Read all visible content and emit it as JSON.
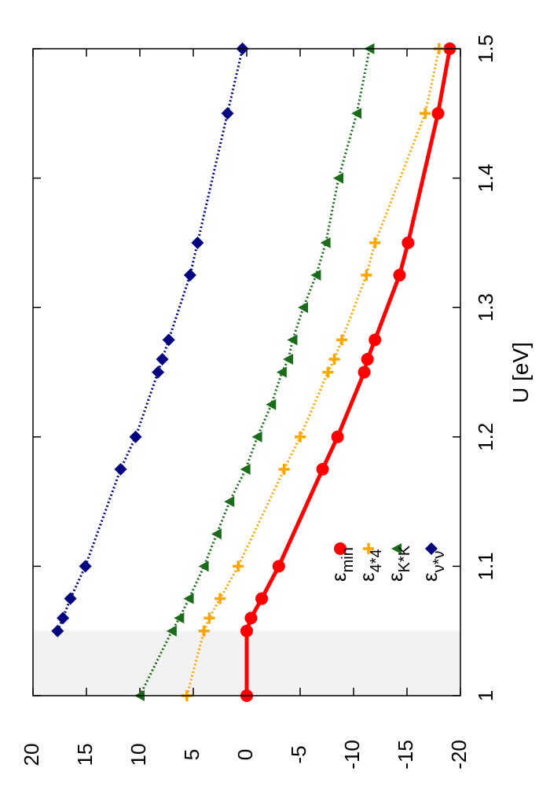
{
  "chart_data": {
    "type": "line",
    "xlabel": "U [eV]",
    "xlim": [
      1,
      1.5
    ],
    "xticks": [
      1,
      1.1,
      1.2,
      1.3,
      1.4,
      1.5
    ],
    "ylim": [
      -20,
      20
    ],
    "yticks": [
      -20,
      -15,
      -10,
      -5,
      0,
      5,
      10,
      15,
      20
    ],
    "shaded_x": [
      1,
      1.05
    ],
    "shade_color": "#f2f2f2",
    "series": [
      {
        "name": "εmin",
        "color": "#ff0000",
        "marker": "circle",
        "line": "solid",
        "x": [
          1,
          1.05,
          1.06,
          1.075,
          1.1,
          1.175,
          1.2,
          1.25,
          1.26,
          1.275,
          1.325,
          1.35,
          1.45,
          1.5
        ],
        "values": [
          0,
          0,
          -0.4,
          -1.4,
          -3,
          -7.1,
          -8.5,
          -11,
          -11.3,
          -12,
          -14.3,
          -15.1,
          -17.9,
          -19
        ]
      },
      {
        "name": "ε4*4",
        "color": "#ffa500",
        "marker": "plus",
        "line": "dotted",
        "x": [
          1,
          1.05,
          1.06,
          1.075,
          1.1,
          1.175,
          1.2,
          1.25,
          1.26,
          1.275,
          1.325,
          1.35,
          1.45,
          1.5
        ],
        "values": [
          5.6,
          4,
          3.5,
          2.5,
          0.8,
          -3.5,
          -5,
          -7.6,
          -8.2,
          -8.9,
          -11.2,
          -12,
          -16.7,
          -18
        ]
      },
      {
        "name": "εK*K",
        "color": "#1a6b1a",
        "marker": "triangle",
        "line": "dotted",
        "x": [
          1,
          1.05,
          1.06,
          1.075,
          1.1,
          1.125,
          1.15,
          1.175,
          1.2,
          1.225,
          1.25,
          1.26,
          1.275,
          1.3,
          1.325,
          1.35,
          1.4,
          1.45,
          1.5
        ],
        "values": [
          10,
          7,
          6.3,
          5.4,
          4,
          2.8,
          1.6,
          0.1,
          -1,
          -2.3,
          -3.3,
          -3.9,
          -4.3,
          -5.3,
          -6.5,
          -7.4,
          -8.6,
          -10.3,
          -11.5
        ]
      },
      {
        "name": "εν*ν",
        "color": "#000080",
        "marker": "diamond",
        "line": "dotted",
        "x": [
          1.05,
          1.06,
          1.075,
          1.1,
          1.175,
          1.2,
          1.25,
          1.26,
          1.275,
          1.325,
          1.35,
          1.45,
          1.5
        ],
        "values": [
          17.7,
          17.2,
          16.5,
          15.1,
          11.8,
          10.4,
          8.3,
          7.9,
          7.3,
          5.3,
          4.6,
          1.8,
          0.4
        ]
      }
    ]
  }
}
